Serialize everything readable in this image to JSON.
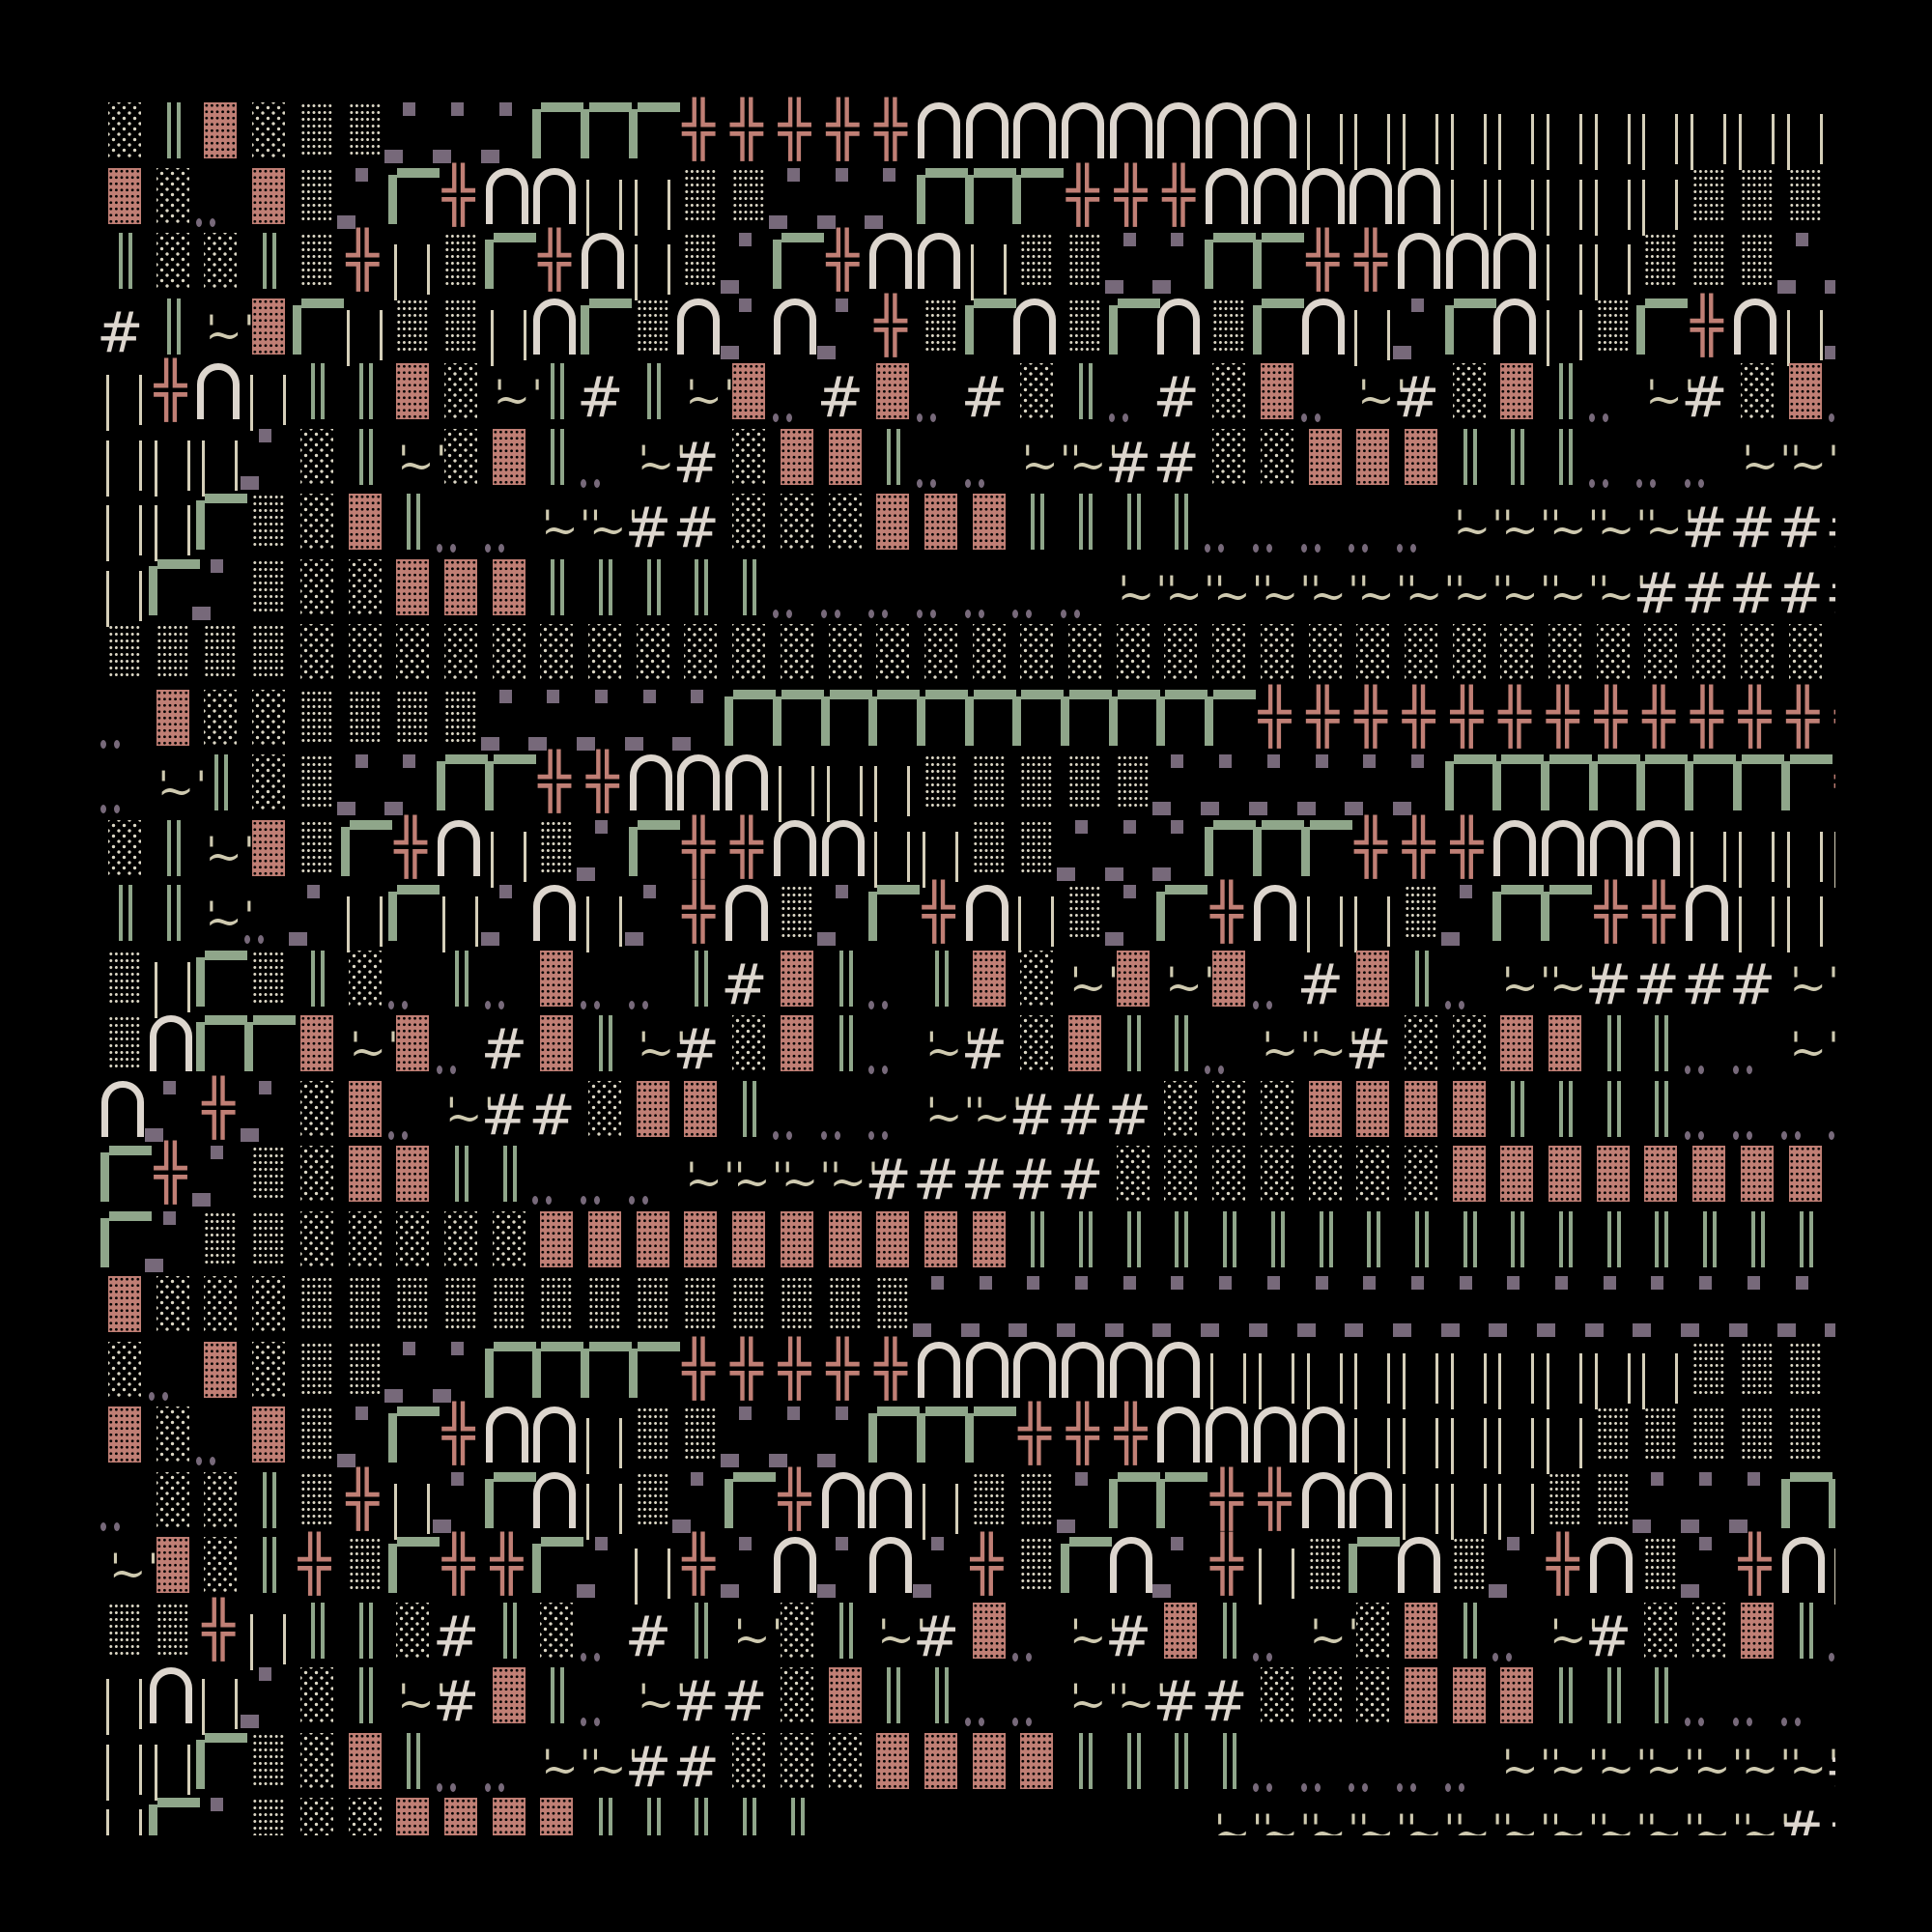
{
  "palette": {
    "background": "#000000",
    "cream": "#ddd6ce",
    "green": "#8fa68a",
    "salmon": "#c07f75",
    "mauve": "#77697a",
    "tilde": "#cfcab0"
  },
  "rows": [
    "░║▓░▒▒▞▞▞┏┏┏╬╬╬╬╬∩∩∩∩∩∩∩∩│││││││││││▒",
    "▓░‥▓▒▞┏╬∩∩││▒▒▞▞▞┏┏┏╬╬╬∩∩∩∩∩│││││▒▒▒▒",
    "║░░║▒╬│▒┏╬∩│▒▞┏╬∩∩│▒▒▞▞┏┏╬╬∩∩∩││▒▒▒▞▞",
    "#║~▓┏│▒▒│∩┏▒∩▞∩▞╬▒┏∩▒┏∩▒┏∩│▞┏∩│▒┏╬∩│▞",
    "│╬∩│║║▓░~║#║~▓‥#▓‥#░║‥#░▓‥~#░▓║‥~#░▓‥",
    "│││▞░║~░▓║‥~#░▓▓║‥‥~~##░░▓▓▓║║║‥‥‥~~~",
    "││┏▒░▓║‥‥~~##░░░▓▓▓║║║║‥‥‥‥‥~~~~~####",
    "│┏▞▒░░▓▓▓║║║║║‥‥‥‥‥‥‥~~~~~~~~~~~#####",
    "▒▒▒▒░░░░░░░░░░░░░░░░░░░░░░░░░░░░░░░░░",
    "‥▓░░▒▒▒▒▞▞▞▞▞┏┏┏┏┏┏┏┏┏┏┏╬╬╬╬╬╬╬╬╬╬╬╬╬",
    "‥~║░▒▞▞┏┏╬╬∩∩∩│││▒▒▒▒▒▞▞▞▞▞▞┏┏┏┏┏┏┏┏╬",
    "░║~▓▒┏╬∩│▒▞┏╬╬∩∩││▒▒▞▞▞┏┏┏╬╬╬∩∩∩∩││││",
    "║║~‥▞│┏│▞∩│▞╬∩▒▞┏╬∩│▒▞┏╬∩││▒▞┏┏╬╬∩││▒",
    "▒│┏▒║░‥║‥▓‥‥║#▓║‥║▓░~▓~▓‥#▓║‥~~####~~",
    "▒∩┏┏▓~▓‥#▓║~#░▓║‥~#░▓║║‥~~#░░▓▓║║‥‥~~",
    "∩▞╬▞░▓‥~##░▓▓║‥‥‥~~###░░░▓▓▓▓║║║║‥‥‥‥",
    "┏╬▞▒░▓▓║║‥‥‥~~~~#####░░░░░░░▓▓▓▓▓▓▓▓▓",
    "┏▞▒▒░░░░░▓▓▓▓▓▓▓▓▓▓║║║║║║║║║║║║║║║║║║",
    "▓░░░▒▒▒▒▒▒▒▒▒▒▒▒▒▞▞▞▞▞▞▞▞▞▞▞▞▞▞▞▞▞▞▞▞",
    "░‥▓░▒▒▞▞┏┏┏┏╬╬╬╬╬∩∩∩∩∩∩││││││││││▒▒▒▒",
    "▓░‥▓▒▞┏╬∩∩│▒▒▞▞▞┏┏┏╬╬╬∩∩∩∩│││││▒▒▒▒▒▒",
    "‥░░║▒╬│▞┏∩│▒▞┏╬∩∩│▒▒▞┏┏╬╬∩∩│││▒▒▞▞▞┏┏",
    "~▓░║╬▒┏╬╬┏▞│╬▞∩▞∩▞╬▒┏∩▞╬│▒┏∩▒▞╬∩▒▞╬∩│",
    "▒▒╬│║║░#║░‥#║~░║~#▓‥~#▓║‥~░▓║‥~#░░▓║‥",
    "│∩│▞░║~#▓║‥~##░▓║║‥‥~~##░░░▓▓▓║║║‥‥‥~",
    "││┏▒░▓║‥‥~~##░░░▓▓▓▓║║║║‥‥‥‥‥~~~~~~~#",
    "│┏▞▒░░▓▓▓▓║║║║║‥‥‥‥‥‥‥‥~~~~~~~~~~~~##"
  ]
}
